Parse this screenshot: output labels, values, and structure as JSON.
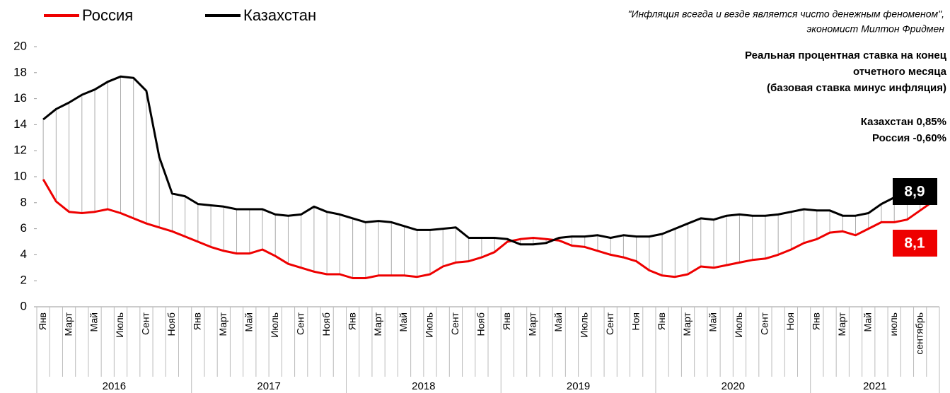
{
  "chart_data": {
    "type": "line",
    "quote": [
      "\"Инфляция всегда и везде является чисто денежным феноменом\",",
      "экономист Милтон Фридмен"
    ],
    "title": [
      "Реальная процентная ставка на конец",
      "отчетного месяца",
      "(базовая ставка минус инфляция)"
    ],
    "notes": [
      "Казахстан 0,85%",
      "Россия -0,60%"
    ],
    "categories": [
      "Янв",
      null,
      "Март",
      null,
      "Май",
      null,
      "Июль",
      null,
      "Сент",
      null,
      "Нояб",
      null,
      "Янв",
      null,
      "Март",
      null,
      "Май",
      null,
      "Июль",
      null,
      "Сент",
      null,
      "Нояб",
      null,
      "Янв",
      null,
      "Март",
      null,
      "Май",
      null,
      "Июль",
      null,
      "Сент",
      null,
      "Нояб",
      null,
      "Янв",
      null,
      "Март",
      null,
      "Май",
      null,
      "Июль",
      null,
      "Сент",
      null,
      "Ноя",
      null,
      "Янв",
      null,
      "Март",
      null,
      "Май",
      null,
      "Июль",
      null,
      "Сент",
      null,
      "Ноя",
      null,
      "Янв",
      null,
      "Март",
      null,
      "Май",
      null,
      "июль",
      null,
      "сентябрь",
      null
    ],
    "years": [
      "2016",
      "2017",
      "2018",
      "2019",
      "2020",
      "2021"
    ],
    "series": [
      {
        "name": "Россия",
        "color": "#ee0000",
        "end_label": "8,1",
        "values": [
          9.8,
          8.1,
          7.3,
          7.2,
          7.3,
          7.5,
          7.2,
          6.8,
          6.4,
          6.1,
          5.8,
          5.4,
          5.0,
          4.6,
          4.3,
          4.1,
          4.1,
          4.4,
          3.9,
          3.3,
          3.0,
          2.7,
          2.5,
          2.5,
          2.2,
          2.2,
          2.4,
          2.4,
          2.4,
          2.3,
          2.5,
          3.1,
          3.4,
          3.5,
          3.8,
          4.2,
          5.0,
          5.2,
          5.3,
          5.2,
          5.1,
          4.7,
          4.6,
          4.3,
          4.0,
          3.8,
          3.5,
          2.8,
          2.4,
          2.3,
          2.5,
          3.1,
          3.0,
          3.2,
          3.4,
          3.6,
          3.7,
          4.0,
          4.4,
          4.9,
          5.2,
          5.7,
          5.8,
          5.5,
          6.0,
          6.5,
          6.5,
          6.7,
          7.4,
          8.1
        ]
      },
      {
        "name": "Казахстан",
        "color": "#000000",
        "end_label": "8,9",
        "values": [
          14.4,
          15.2,
          15.7,
          16.3,
          16.7,
          17.3,
          17.7,
          17.6,
          16.6,
          11.5,
          8.7,
          8.5,
          7.9,
          7.8,
          7.7,
          7.5,
          7.5,
          7.5,
          7.1,
          7.0,
          7.1,
          7.7,
          7.3,
          7.1,
          6.8,
          6.5,
          6.6,
          6.5,
          6.2,
          5.9,
          5.9,
          6.0,
          6.1,
          5.3,
          5.3,
          5.3,
          5.2,
          4.8,
          4.8,
          4.9,
          5.3,
          5.4,
          5.4,
          5.5,
          5.3,
          5.5,
          5.4,
          5.4,
          5.6,
          6.0,
          6.4,
          6.8,
          6.7,
          7.0,
          7.1,
          7.0,
          7.0,
          7.1,
          7.3,
          7.5,
          7.4,
          7.4,
          7.0,
          7.0,
          7.2,
          7.9,
          8.4,
          8.7,
          8.9,
          8.9
        ]
      }
    ],
    "ylim": [
      0,
      20
    ],
    "yticks": [
      0,
      2,
      4,
      6,
      8,
      10,
      12,
      14,
      16,
      18,
      20
    ],
    "grid": false
  }
}
